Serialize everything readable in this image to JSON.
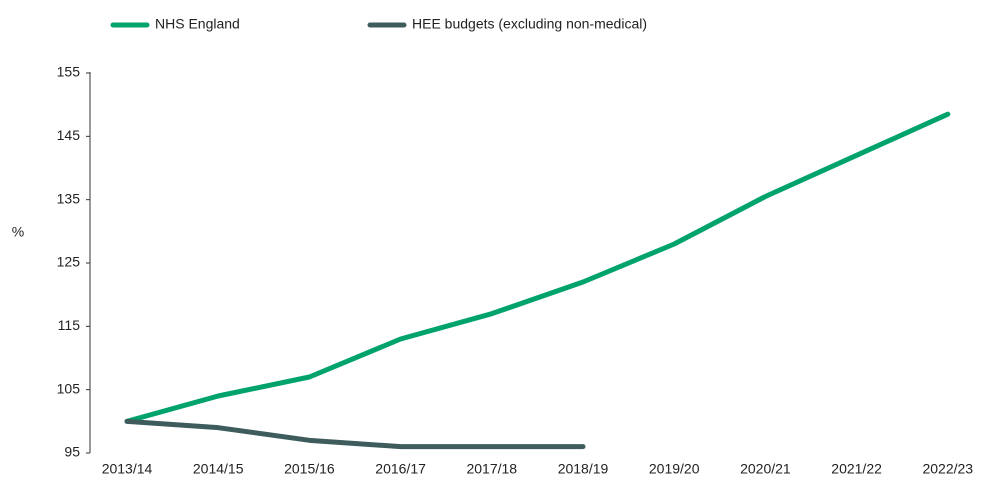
{
  "chart_data": {
    "type": "line",
    "categories": [
      "2013/14",
      "2014/15",
      "2015/16",
      "2016/17",
      "2017/18",
      "2018/19",
      "2019/20",
      "2020/21",
      "2021/22",
      "2022/23"
    ],
    "series": [
      {
        "name": "NHS England",
        "color": "#00a36c",
        "values": [
          100,
          104,
          107,
          113,
          117,
          122,
          128,
          135.5,
          142,
          148.5
        ]
      },
      {
        "name": "HEE budgets (excluding non-medical)",
        "color": "#3e5c5c",
        "values": [
          100,
          99,
          97,
          96,
          96,
          96,
          null,
          null,
          null,
          null
        ]
      }
    ],
    "ylabel": "%",
    "ylim": [
      95,
      155
    ],
    "yticks": [
      95,
      105,
      115,
      125,
      135,
      145,
      155
    ]
  }
}
